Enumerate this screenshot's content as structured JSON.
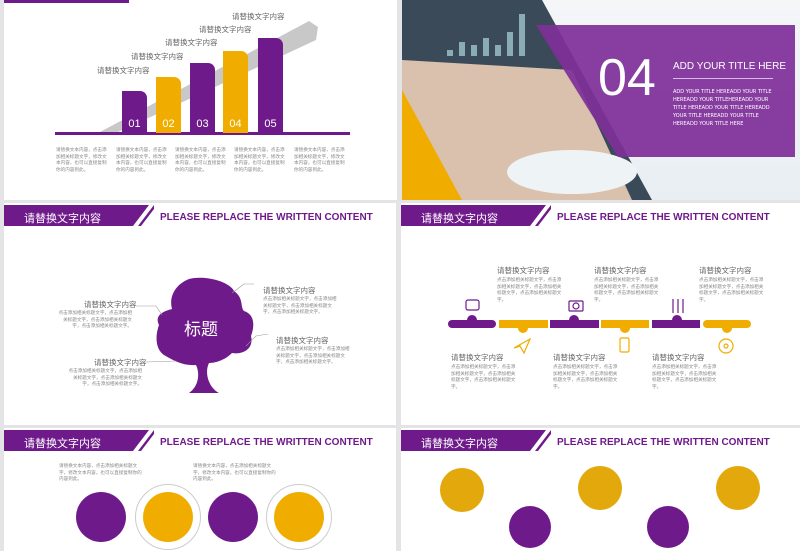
{
  "colors": {
    "purple": "#6f1a8a",
    "yellow": "#f0ad00",
    "gray": "#c8c8c8"
  },
  "slide1": {
    "steps": [
      {
        "num": "01",
        "label": "请替换文字内容",
        "color": "purple",
        "level": 1
      },
      {
        "num": "02",
        "label": "请替换文字内容",
        "color": "yellow",
        "level": 2
      },
      {
        "num": "03",
        "label": "请替换文字内容",
        "color": "purple",
        "level": 3
      },
      {
        "num": "04",
        "label": "请替换文字内容",
        "color": "yellow",
        "level": 4
      },
      {
        "num": "05",
        "label": "请替换文字内容",
        "color": "purple",
        "level": 5
      }
    ],
    "descriptions": [
      "请替换文本内容，点击添加相关标题文字，修改文本内容，也可以直接复制你的内容到此。",
      "请替换文本内容，点击添加相关标题文字，修改文本内容，也可以直接复制你的内容到此。",
      "请替换文本内容，点击添加相关标题文字，修改文本内容，也可以直接复制你的内容到此。",
      "请替换文本内容，点击添加相关标题文字，修改文本内容，也可以直接复制你的内容到此。",
      "请替换文本内容，点击添加相关标题文字，修改文本内容，也可以直接复制你的内容到此。"
    ]
  },
  "slide2": {
    "number": "04",
    "title": "ADD YOUR TITLE HERE",
    "body": "ADD YOUR TITLE HEREADD YOUR TITLE HEREADD YOUR TITLEHEREADD YOUR TITLE HEREADD YOUR TITLE HEREADD YOUR TITLE HEREADD YOUR TITLE HEREADD YOUR TITLE HERE"
  },
  "header": {
    "cn": "请替换文字内容",
    "en": "PLEASE REPLACE THE WRITTEN CONTENT"
  },
  "slide3": {
    "center": "标题",
    "items": [
      {
        "label": "请替换文字内容",
        "body": "点击添加相关标题文字，点击添加相关标题文字，点击添加相关标题文字，点击添加相关标题文字。"
      },
      {
        "label": "请替换文字内容",
        "body": "点击添加相关标题文字，点击添加相关标题文字，点击添加相关标题文字，点击添加相关标题文字。"
      },
      {
        "label": "请替换文字内容",
        "body": "点击添加相关标题文字，点击添加相关标题文字，点击添加相关标题文字，点击添加相关标题文字。"
      },
      {
        "label": "请替换文字内容",
        "body": "点击添加相关标题文字，点击添加相关标题文字，点击添加相关标题文字，点击添加相关标题文字。"
      }
    ]
  },
  "slide4": {
    "items": [
      {
        "label": "请替换文字内容",
        "body": "点击添加相关标题文字，点击添加相关标题文字，点击添加相关标题文字，点击添加相关标题文字。",
        "icon": "tv-icon"
      },
      {
        "label": "请替换文字内容",
        "body": "点击添加相关标题文字，点击添加相关标题文字，点击添加相关标题文字，点击添加相关标题文字。",
        "icon": "paper-plane-icon"
      },
      {
        "label": "请替换文字内容",
        "body": "点击添加相关标题文字，点击添加相关标题文字，点击添加相关标题文字，点击添加相关标题文字。",
        "icon": "camera-icon"
      },
      {
        "label": "请替换文字内容",
        "body": "点击添加相关标题文字，点击添加相关标题文字，点击添加相关标题文字，点击添加相关标题文字。",
        "icon": "phone-icon"
      },
      {
        "label": "请替换文字内容",
        "body": "点击添加相关标题文字，点击添加相关标题文字，点击添加相关标题文字，点击添加相关标题文字。",
        "icon": "sliders-icon"
      },
      {
        "label": "请替换文字内容",
        "body": "点击添加相关标题文字，点击添加相关标题文字，点击添加相关标题文字，点击添加相关标题文字。",
        "icon": "disc-icon"
      }
    ]
  },
  "slide5": {
    "texts": [
      "请替换文本内容，点击添加相关标题文字，修改文本内容，也可以直接复制你的内容到此。",
      "请替换文本内容，点击添加相关标题文字，修改文本内容，也可以直接复制你的内容到此。"
    ]
  }
}
